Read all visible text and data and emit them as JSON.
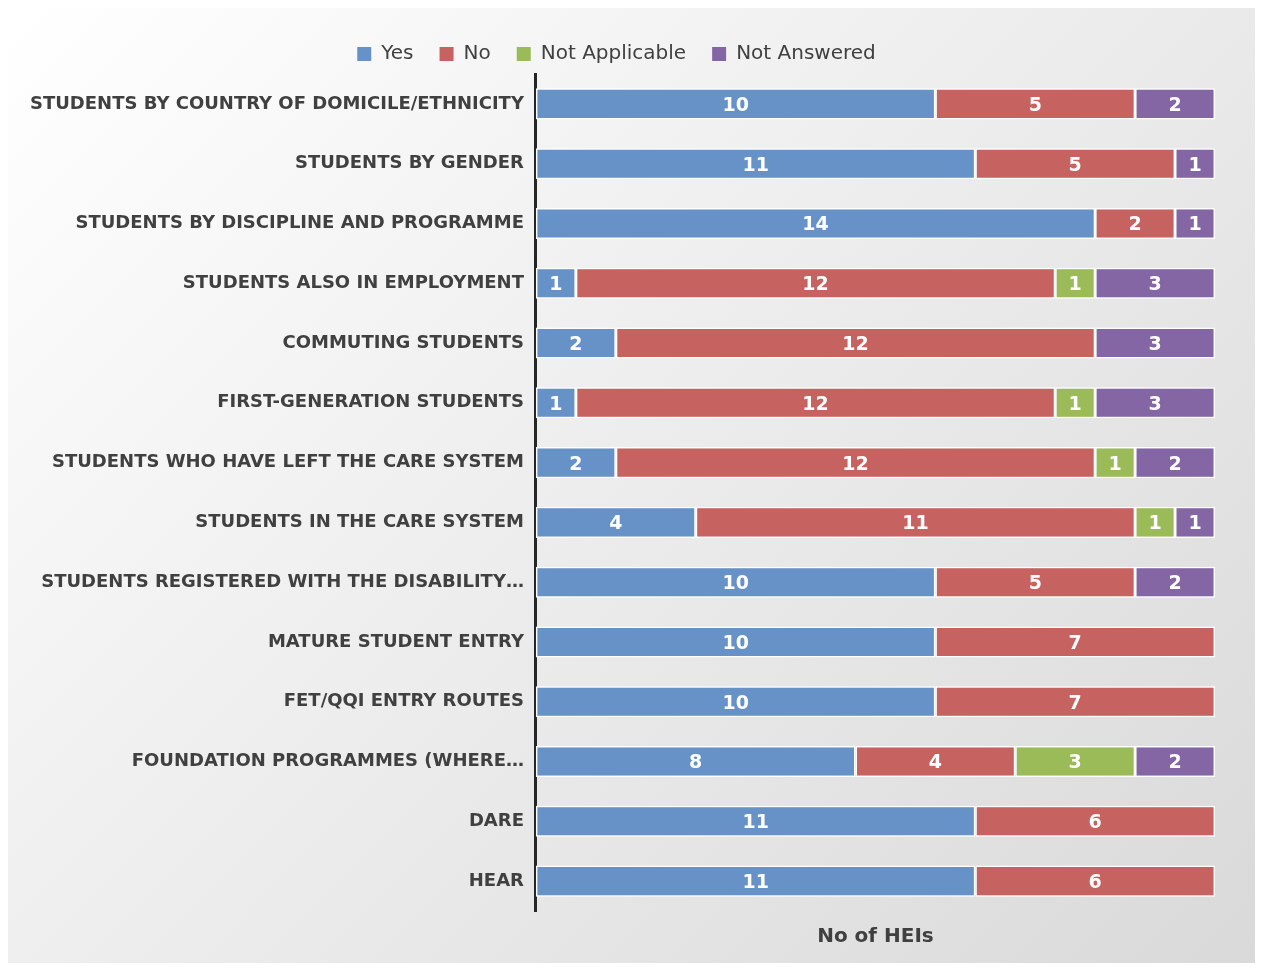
{
  "chart_data": {
    "type": "bar",
    "orientation": "horizontal",
    "stacked": true,
    "xlabel": "No of HEIs",
    "legend": "top",
    "data_labels": true,
    "tick_labels": "y",
    "grid": false,
    "xlim": [
      0,
      17
    ],
    "categories": [
      "STUDENTS BY COUNTRY OF DOMICILE/ETHNICITY",
      "STUDENTS BY GENDER",
      "STUDENTS BY DISCIPLINE AND PROGRAMME",
      "STUDENTS ALSO IN EMPLOYMENT",
      "COMMUTING STUDENTS",
      "FIRST-GENERATION STUDENTS",
      "STUDENTS WHO HAVE LEFT THE CARE SYSTEM",
      "STUDENTS IN THE CARE SYSTEM",
      "STUDENTS REGISTERED WITH THE DISABILITY…",
      "MATURE STUDENT ENTRY",
      "FET/QQI ENTRY ROUTES",
      "FOUNDATION PROGRAMMES (WHERE…",
      "DARE",
      "HEAR"
    ],
    "series": [
      {
        "name": "Yes",
        "color": "#6792c8",
        "values": [
          10,
          11,
          14,
          1,
          2,
          1,
          2,
          4,
          10,
          10,
          10,
          8,
          11,
          11
        ]
      },
      {
        "name": "No",
        "color": "#c6625f",
        "values": [
          5,
          5,
          2,
          12,
          12,
          12,
          12,
          11,
          5,
          7,
          7,
          4,
          6,
          6
        ]
      },
      {
        "name": "Not Applicable",
        "color": "#9bbb59",
        "values": [
          null,
          null,
          null,
          1,
          null,
          1,
          1,
          1,
          null,
          null,
          null,
          3,
          null,
          null
        ]
      },
      {
        "name": "Not Answered",
        "color": "#8466a5",
        "values": [
          2,
          1,
          1,
          3,
          3,
          3,
          2,
          1,
          2,
          null,
          null,
          2,
          null,
          null
        ]
      }
    ]
  }
}
